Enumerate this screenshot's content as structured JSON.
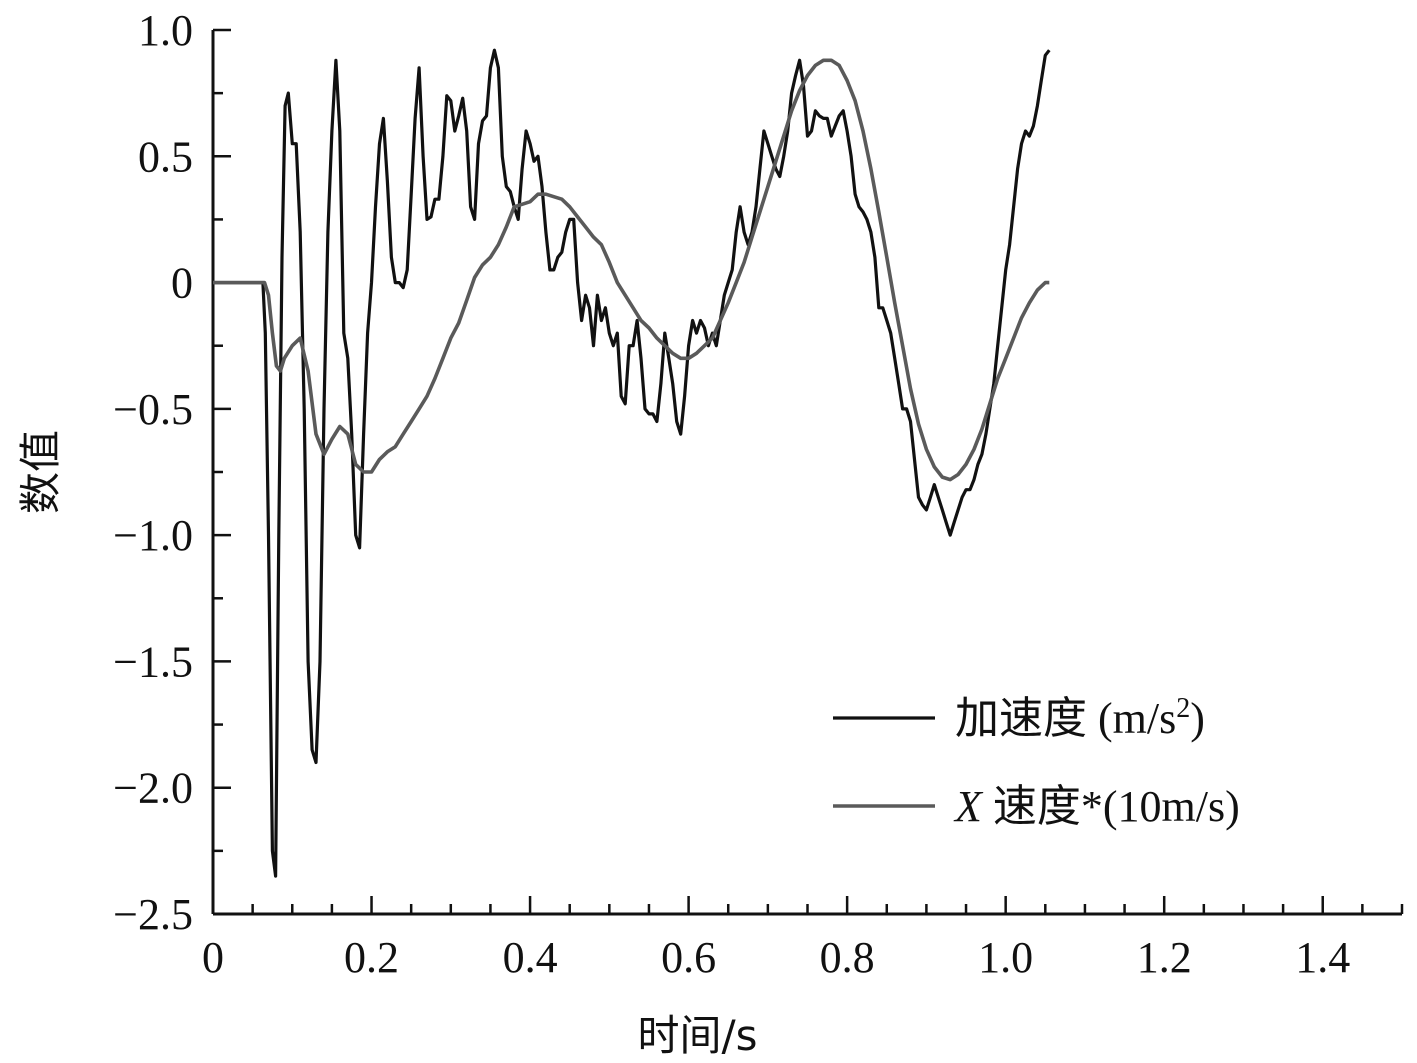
{
  "chart_data": {
    "type": "line",
    "title": "",
    "xlabel": "时间/s",
    "ylabel": "数值",
    "xlim": [
      0,
      1.5
    ],
    "ylim": [
      -2.5,
      1.0
    ],
    "xticks": [
      0,
      0.2,
      0.4,
      0.6,
      0.8,
      1.0,
      1.2,
      1.4
    ],
    "xtick_labels": [
      "0",
      "0.2",
      "0.4",
      "0.6",
      "0.8",
      "1.0",
      "1.2",
      "1.4"
    ],
    "yticks": [
      1.0,
      0.5,
      0,
      -0.5,
      -1.0,
      -1.5,
      -2.0,
      -2.5
    ],
    "ytick_labels": [
      "1.0",
      "0.5",
      "0",
      "−0.5",
      "−1.0",
      "−1.5",
      "−2.0",
      "−2.5"
    ],
    "grid": false,
    "legend_position": "bottom-right",
    "series": [
      {
        "name": "加速度 (m/s²)",
        "label_main": "加速度 (m/s",
        "label_sup": "2",
        "label_close": ")",
        "color": "#111111",
        "points": [
          [
            0.0,
            0
          ],
          [
            0.063,
            0
          ],
          [
            0.066,
            -0.2
          ],
          [
            0.07,
            -1.0
          ],
          [
            0.075,
            -2.25
          ],
          [
            0.079,
            -2.35
          ],
          [
            0.083,
            -1.0
          ],
          [
            0.087,
            0.1
          ],
          [
            0.091,
            0.7
          ],
          [
            0.095,
            0.75
          ],
          [
            0.1,
            0.55
          ],
          [
            0.105,
            0.55
          ],
          [
            0.11,
            0.2
          ],
          [
            0.115,
            -0.5
          ],
          [
            0.12,
            -1.5
          ],
          [
            0.125,
            -1.85
          ],
          [
            0.13,
            -1.9
          ],
          [
            0.135,
            -1.5
          ],
          [
            0.14,
            -0.5
          ],
          [
            0.145,
            0.2
          ],
          [
            0.15,
            0.6
          ],
          [
            0.155,
            0.88
          ],
          [
            0.16,
            0.6
          ],
          [
            0.165,
            -0.2
          ],
          [
            0.17,
            -0.3
          ],
          [
            0.175,
            -0.6
          ],
          [
            0.18,
            -1.0
          ],
          [
            0.185,
            -1.05
          ],
          [
            0.19,
            -0.6
          ],
          [
            0.195,
            -0.2
          ],
          [
            0.2,
            0.0
          ],
          [
            0.205,
            0.3
          ],
          [
            0.21,
            0.55
          ],
          [
            0.215,
            0.65
          ],
          [
            0.22,
            0.4
          ],
          [
            0.225,
            0.1
          ],
          [
            0.23,
            0.0
          ],
          [
            0.235,
            0.0
          ],
          [
            0.24,
            -0.02
          ],
          [
            0.245,
            0.05
          ],
          [
            0.25,
            0.35
          ],
          [
            0.255,
            0.65
          ],
          [
            0.26,
            0.85
          ],
          [
            0.265,
            0.5
          ],
          [
            0.27,
            0.25
          ],
          [
            0.275,
            0.26
          ],
          [
            0.28,
            0.33
          ],
          [
            0.285,
            0.33
          ],
          [
            0.29,
            0.5
          ],
          [
            0.295,
            0.74
          ],
          [
            0.3,
            0.72
          ],
          [
            0.305,
            0.6
          ],
          [
            0.31,
            0.66
          ],
          [
            0.315,
            0.73
          ],
          [
            0.32,
            0.6
          ],
          [
            0.325,
            0.3
          ],
          [
            0.33,
            0.25
          ],
          [
            0.335,
            0.55
          ],
          [
            0.34,
            0.64
          ],
          [
            0.345,
            0.66
          ],
          [
            0.35,
            0.85
          ],
          [
            0.355,
            0.92
          ],
          [
            0.36,
            0.85
          ],
          [
            0.365,
            0.5
          ],
          [
            0.37,
            0.38
          ],
          [
            0.375,
            0.36
          ],
          [
            0.38,
            0.3
          ],
          [
            0.385,
            0.25
          ],
          [
            0.39,
            0.45
          ],
          [
            0.395,
            0.6
          ],
          [
            0.4,
            0.55
          ],
          [
            0.405,
            0.48
          ],
          [
            0.41,
            0.5
          ],
          [
            0.415,
            0.38
          ],
          [
            0.42,
            0.2
          ],
          [
            0.425,
            0.05
          ],
          [
            0.43,
            0.05
          ],
          [
            0.435,
            0.1
          ],
          [
            0.44,
            0.12
          ],
          [
            0.445,
            0.2
          ],
          [
            0.45,
            0.25
          ],
          [
            0.455,
            0.25
          ],
          [
            0.46,
            0.0
          ],
          [
            0.465,
            -0.15
          ],
          [
            0.47,
            -0.05
          ],
          [
            0.475,
            -0.1
          ],
          [
            0.48,
            -0.25
          ],
          [
            0.485,
            -0.05
          ],
          [
            0.49,
            -0.15
          ],
          [
            0.495,
            -0.1
          ],
          [
            0.5,
            -0.2
          ],
          [
            0.505,
            -0.25
          ],
          [
            0.51,
            -0.2
          ],
          [
            0.515,
            -0.45
          ],
          [
            0.52,
            -0.48
          ],
          [
            0.525,
            -0.25
          ],
          [
            0.53,
            -0.25
          ],
          [
            0.535,
            -0.15
          ],
          [
            0.54,
            -0.3
          ],
          [
            0.545,
            -0.5
          ],
          [
            0.55,
            -0.52
          ],
          [
            0.555,
            -0.52
          ],
          [
            0.56,
            -0.55
          ],
          [
            0.565,
            -0.4
          ],
          [
            0.57,
            -0.2
          ],
          [
            0.575,
            -0.3
          ],
          [
            0.58,
            -0.4
          ],
          [
            0.585,
            -0.55
          ],
          [
            0.59,
            -0.6
          ],
          [
            0.595,
            -0.45
          ],
          [
            0.6,
            -0.25
          ],
          [
            0.605,
            -0.15
          ],
          [
            0.61,
            -0.2
          ],
          [
            0.615,
            -0.15
          ],
          [
            0.62,
            -0.18
          ],
          [
            0.625,
            -0.25
          ],
          [
            0.63,
            -0.2
          ],
          [
            0.635,
            -0.25
          ],
          [
            0.64,
            -0.15
          ],
          [
            0.645,
            -0.05
          ],
          [
            0.65,
            0.0
          ],
          [
            0.655,
            0.05
          ],
          [
            0.66,
            0.2
          ],
          [
            0.665,
            0.3
          ],
          [
            0.67,
            0.2
          ],
          [
            0.675,
            0.15
          ],
          [
            0.68,
            0.2
          ],
          [
            0.685,
            0.3
          ],
          [
            0.69,
            0.45
          ],
          [
            0.695,
            0.6
          ],
          [
            0.7,
            0.55
          ],
          [
            0.705,
            0.5
          ],
          [
            0.71,
            0.45
          ],
          [
            0.715,
            0.42
          ],
          [
            0.72,
            0.5
          ],
          [
            0.725,
            0.6
          ],
          [
            0.73,
            0.75
          ],
          [
            0.735,
            0.82
          ],
          [
            0.74,
            0.88
          ],
          [
            0.745,
            0.78
          ],
          [
            0.75,
            0.58
          ],
          [
            0.755,
            0.6
          ],
          [
            0.76,
            0.68
          ],
          [
            0.765,
            0.66
          ],
          [
            0.77,
            0.65
          ],
          [
            0.775,
            0.65
          ],
          [
            0.78,
            0.58
          ],
          [
            0.785,
            0.62
          ],
          [
            0.79,
            0.66
          ],
          [
            0.795,
            0.68
          ],
          [
            0.8,
            0.6
          ],
          [
            0.805,
            0.5
          ],
          [
            0.81,
            0.35
          ],
          [
            0.815,
            0.3
          ],
          [
            0.82,
            0.28
          ],
          [
            0.825,
            0.25
          ],
          [
            0.83,
            0.2
          ],
          [
            0.835,
            0.1
          ],
          [
            0.84,
            -0.1
          ],
          [
            0.845,
            -0.1
          ],
          [
            0.85,
            -0.15
          ],
          [
            0.855,
            -0.2
          ],
          [
            0.86,
            -0.3
          ],
          [
            0.865,
            -0.4
          ],
          [
            0.87,
            -0.5
          ],
          [
            0.875,
            -0.5
          ],
          [
            0.88,
            -0.55
          ],
          [
            0.885,
            -0.7
          ],
          [
            0.89,
            -0.85
          ],
          [
            0.895,
            -0.88
          ],
          [
            0.9,
            -0.9
          ],
          [
            0.905,
            -0.85
          ],
          [
            0.91,
            -0.8
          ],
          [
            0.915,
            -0.85
          ],
          [
            0.92,
            -0.9
          ],
          [
            0.925,
            -0.95
          ],
          [
            0.93,
            -1.0
          ],
          [
            0.935,
            -0.95
          ],
          [
            0.94,
            -0.9
          ],
          [
            0.945,
            -0.85
          ],
          [
            0.95,
            -0.82
          ],
          [
            0.955,
            -0.82
          ],
          [
            0.96,
            -0.78
          ],
          [
            0.965,
            -0.72
          ],
          [
            0.97,
            -0.68
          ],
          [
            0.975,
            -0.6
          ],
          [
            0.98,
            -0.5
          ],
          [
            0.985,
            -0.4
          ],
          [
            0.99,
            -0.25
          ],
          [
            0.995,
            -0.1
          ],
          [
            1.0,
            0.05
          ],
          [
            1.005,
            0.15
          ],
          [
            1.01,
            0.3
          ],
          [
            1.015,
            0.45
          ],
          [
            1.02,
            0.55
          ],
          [
            1.025,
            0.6
          ],
          [
            1.03,
            0.58
          ],
          [
            1.035,
            0.62
          ],
          [
            1.04,
            0.7
          ],
          [
            1.045,
            0.8
          ],
          [
            1.05,
            0.9
          ],
          [
            1.055,
            0.92
          ]
        ]
      },
      {
        "name": "X 速度*(10m/s)",
        "label_italic": "X",
        "label_rest": " 速度*(10m/s)",
        "color": "#5a5a5a",
        "points": [
          [
            0.0,
            0
          ],
          [
            0.065,
            0
          ],
          [
            0.07,
            -0.05
          ],
          [
            0.075,
            -0.2
          ],
          [
            0.08,
            -0.33
          ],
          [
            0.085,
            -0.35
          ],
          [
            0.09,
            -0.3
          ],
          [
            0.1,
            -0.25
          ],
          [
            0.11,
            -0.22
          ],
          [
            0.12,
            -0.35
          ],
          [
            0.13,
            -0.6
          ],
          [
            0.14,
            -0.68
          ],
          [
            0.15,
            -0.62
          ],
          [
            0.16,
            -0.57
          ],
          [
            0.17,
            -0.6
          ],
          [
            0.18,
            -0.72
          ],
          [
            0.19,
            -0.75
          ],
          [
            0.2,
            -0.75
          ],
          [
            0.21,
            -0.7
          ],
          [
            0.22,
            -0.67
          ],
          [
            0.23,
            -0.65
          ],
          [
            0.24,
            -0.6
          ],
          [
            0.25,
            -0.55
          ],
          [
            0.26,
            -0.5
          ],
          [
            0.27,
            -0.45
          ],
          [
            0.28,
            -0.38
          ],
          [
            0.29,
            -0.3
          ],
          [
            0.3,
            -0.22
          ],
          [
            0.31,
            -0.16
          ],
          [
            0.32,
            -0.07
          ],
          [
            0.33,
            0.02
          ],
          [
            0.34,
            0.07
          ],
          [
            0.35,
            0.1
          ],
          [
            0.36,
            0.15
          ],
          [
            0.37,
            0.22
          ],
          [
            0.38,
            0.3
          ],
          [
            0.39,
            0.31
          ],
          [
            0.4,
            0.32
          ],
          [
            0.41,
            0.35
          ],
          [
            0.42,
            0.35
          ],
          [
            0.43,
            0.34
          ],
          [
            0.44,
            0.33
          ],
          [
            0.45,
            0.3
          ],
          [
            0.46,
            0.26
          ],
          [
            0.47,
            0.22
          ],
          [
            0.48,
            0.18
          ],
          [
            0.49,
            0.15
          ],
          [
            0.5,
            0.08
          ],
          [
            0.51,
            0.0
          ],
          [
            0.52,
            -0.05
          ],
          [
            0.53,
            -0.1
          ],
          [
            0.54,
            -0.15
          ],
          [
            0.55,
            -0.18
          ],
          [
            0.56,
            -0.22
          ],
          [
            0.57,
            -0.25
          ],
          [
            0.58,
            -0.28
          ],
          [
            0.59,
            -0.3
          ],
          [
            0.6,
            -0.3
          ],
          [
            0.61,
            -0.28
          ],
          [
            0.62,
            -0.25
          ],
          [
            0.63,
            -0.22
          ],
          [
            0.64,
            -0.15
          ],
          [
            0.65,
            -0.08
          ],
          [
            0.66,
            0.0
          ],
          [
            0.67,
            0.08
          ],
          [
            0.68,
            0.18
          ],
          [
            0.69,
            0.28
          ],
          [
            0.7,
            0.38
          ],
          [
            0.71,
            0.48
          ],
          [
            0.72,
            0.58
          ],
          [
            0.73,
            0.68
          ],
          [
            0.74,
            0.76
          ],
          [
            0.75,
            0.82
          ],
          [
            0.76,
            0.86
          ],
          [
            0.77,
            0.88
          ],
          [
            0.78,
            0.88
          ],
          [
            0.79,
            0.86
          ],
          [
            0.8,
            0.8
          ],
          [
            0.81,
            0.72
          ],
          [
            0.82,
            0.6
          ],
          [
            0.83,
            0.45
          ],
          [
            0.84,
            0.28
          ],
          [
            0.85,
            0.1
          ],
          [
            0.86,
            -0.08
          ],
          [
            0.87,
            -0.25
          ],
          [
            0.88,
            -0.42
          ],
          [
            0.89,
            -0.56
          ],
          [
            0.9,
            -0.66
          ],
          [
            0.91,
            -0.73
          ],
          [
            0.92,
            -0.77
          ],
          [
            0.93,
            -0.78
          ],
          [
            0.94,
            -0.76
          ],
          [
            0.95,
            -0.72
          ],
          [
            0.96,
            -0.66
          ],
          [
            0.97,
            -0.58
          ],
          [
            0.98,
            -0.48
          ],
          [
            0.99,
            -0.38
          ],
          [
            1.0,
            -0.3
          ],
          [
            1.01,
            -0.22
          ],
          [
            1.02,
            -0.14
          ],
          [
            1.03,
            -0.08
          ],
          [
            1.04,
            -0.03
          ],
          [
            1.05,
            0.0
          ],
          [
            1.055,
            0.0
          ]
        ]
      }
    ]
  },
  "axes_labels": {
    "x": "时间/s",
    "y": "数值"
  }
}
